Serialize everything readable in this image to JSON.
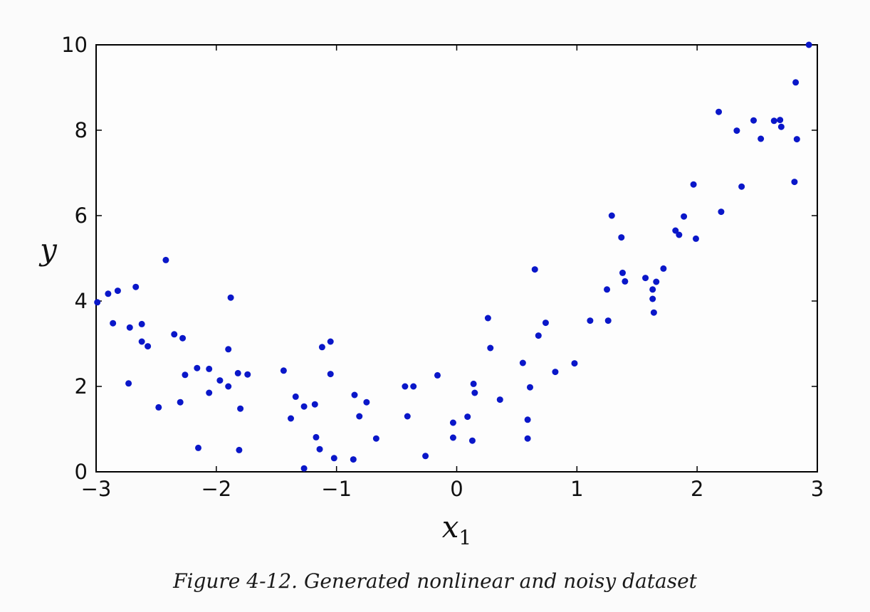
{
  "caption": "Figure 4-12. Generated nonlinear and noisy dataset",
  "chart_data": {
    "type": "scatter",
    "title": "",
    "xlabel": "x",
    "xlabel_subscript": "1",
    "ylabel": "y",
    "xlim": [
      -3,
      3
    ],
    "ylim": [
      0,
      10
    ],
    "xticks": [
      -3,
      -2,
      -1,
      0,
      1,
      2,
      3
    ],
    "xtick_labels": [
      "−3",
      "−2",
      "−1",
      "0",
      "1",
      "2",
      "3"
    ],
    "yticks": [
      0,
      2,
      4,
      6,
      8,
      10
    ],
    "ytick_labels": [
      "0",
      "2",
      "4",
      "6",
      "8",
      "10"
    ],
    "grid": false,
    "marker_color": "#0a17c9",
    "points": [
      [
        -2.99,
        3.97
      ],
      [
        -2.9,
        4.17
      ],
      [
        -2.82,
        4.24
      ],
      [
        -2.67,
        4.33
      ],
      [
        -2.42,
        4.96
      ],
      [
        -1.88,
        4.08
      ],
      [
        -2.86,
        3.48
      ],
      [
        -2.72,
        3.38
      ],
      [
        -2.62,
        3.46
      ],
      [
        -2.62,
        3.05
      ],
      [
        -2.57,
        2.94
      ],
      [
        -2.35,
        3.22
      ],
      [
        -2.28,
        3.13
      ],
      [
        -2.73,
        2.07
      ],
      [
        -2.48,
        1.51
      ],
      [
        -2.3,
        1.63
      ],
      [
        -2.26,
        2.27
      ],
      [
        -2.16,
        2.43
      ],
      [
        -2.06,
        2.41
      ],
      [
        -2.06,
        1.85
      ],
      [
        -1.97,
        2.14
      ],
      [
        -1.9,
        2.0
      ],
      [
        -1.9,
        2.87
      ],
      [
        -1.82,
        2.31
      ],
      [
        -1.74,
        2.28
      ],
      [
        -1.8,
        1.48
      ],
      [
        -2.15,
        0.56
      ],
      [
        -1.81,
        0.51
      ],
      [
        -1.44,
        2.37
      ],
      [
        -1.34,
        1.76
      ],
      [
        -1.38,
        1.25
      ],
      [
        -1.27,
        1.53
      ],
      [
        -1.18,
        1.58
      ],
      [
        -1.12,
        2.92
      ],
      [
        -1.05,
        3.05
      ],
      [
        -1.05,
        2.29
      ],
      [
        -1.17,
        0.81
      ],
      [
        -1.14,
        0.53
      ],
      [
        -1.02,
        0.32
      ],
      [
        -1.27,
        0.08
      ],
      [
        -0.85,
        1.8
      ],
      [
        -0.81,
        1.3
      ],
      [
        -0.75,
        1.63
      ],
      [
        -0.86,
        0.29
      ],
      [
        -0.67,
        0.78
      ],
      [
        -0.43,
        2.0
      ],
      [
        -0.36,
        2.0
      ],
      [
        -0.41,
        1.3
      ],
      [
        -0.16,
        2.26
      ],
      [
        -0.26,
        0.37
      ],
      [
        -0.03,
        1.15
      ],
      [
        -0.03,
        0.8
      ],
      [
        0.09,
        1.29
      ],
      [
        0.13,
        0.73
      ],
      [
        0.14,
        2.06
      ],
      [
        0.15,
        1.85
      ],
      [
        0.26,
        3.6
      ],
      [
        0.28,
        2.9
      ],
      [
        0.36,
        1.69
      ],
      [
        0.55,
        2.55
      ],
      [
        0.59,
        1.22
      ],
      [
        0.59,
        0.78
      ],
      [
        0.61,
        1.98
      ],
      [
        0.65,
        4.74
      ],
      [
        0.68,
        3.19
      ],
      [
        0.74,
        3.49
      ],
      [
        0.82,
        2.34
      ],
      [
        0.98,
        2.54
      ],
      [
        1.11,
        3.54
      ],
      [
        1.25,
        4.27
      ],
      [
        1.26,
        3.54
      ],
      [
        1.29,
        6.0
      ],
      [
        1.37,
        5.49
      ],
      [
        1.38,
        4.66
      ],
      [
        1.4,
        4.46
      ],
      [
        1.57,
        4.54
      ],
      [
        1.63,
        4.27
      ],
      [
        1.63,
        4.05
      ],
      [
        1.64,
        3.73
      ],
      [
        1.66,
        4.45
      ],
      [
        1.72,
        4.76
      ],
      [
        1.82,
        5.65
      ],
      [
        1.85,
        5.55
      ],
      [
        1.89,
        5.98
      ],
      [
        1.97,
        6.73
      ],
      [
        1.99,
        5.46
      ],
      [
        2.18,
        8.43
      ],
      [
        2.2,
        6.09
      ],
      [
        2.33,
        7.99
      ],
      [
        2.37,
        6.68
      ],
      [
        2.47,
        8.23
      ],
      [
        2.53,
        7.8
      ],
      [
        2.64,
        8.22
      ],
      [
        2.69,
        8.24
      ],
      [
        2.7,
        8.08
      ],
      [
        2.81,
        6.79
      ],
      [
        2.82,
        9.12
      ],
      [
        2.83,
        7.79
      ],
      [
        2.93,
        10.0
      ]
    ]
  }
}
